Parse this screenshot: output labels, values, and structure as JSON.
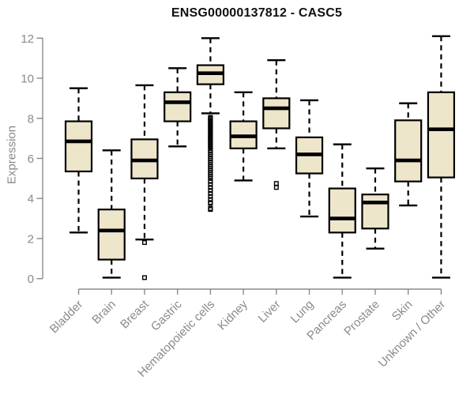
{
  "chart_data": {
    "type": "boxplot",
    "title": "ENSG00000137812 - CASC5",
    "ylabel": "Expression",
    "xlabel": "",
    "ylim": [
      0,
      12
    ],
    "yticks": [
      0,
      2,
      4,
      6,
      8,
      10,
      12
    ],
    "grid": false,
    "legend": "none",
    "colors": {
      "box_fill": "#EDE6CB",
      "box_border": "#000000",
      "median": "#000000",
      "whisker": "#000000",
      "axis": "#8a8a8a",
      "tick_label": "#8a8a8a",
      "title": "#111111"
    },
    "categories": [
      "Bladder",
      "Brain",
      "Breast",
      "Gastric",
      "Hematopoietic cells",
      "Kidney",
      "Liver",
      "Lung",
      "Pancreas",
      "Prostate",
      "Skin",
      "Unknown / Other"
    ],
    "series": [
      {
        "name": "Bladder",
        "low": 2.3,
        "q1": 5.35,
        "median": 6.85,
        "q3": 7.85,
        "high": 9.5,
        "outliers": []
      },
      {
        "name": "Brain",
        "low": 0.05,
        "q1": 0.95,
        "median": 2.4,
        "q3": 3.45,
        "high": 6.4,
        "outliers": []
      },
      {
        "name": "Breast",
        "low": 1.95,
        "q1": 5.0,
        "median": 5.9,
        "q3": 6.95,
        "high": 9.65,
        "outliers": [
          1.8,
          0.05
        ]
      },
      {
        "name": "Gastric",
        "low": 6.6,
        "q1": 7.85,
        "median": 8.8,
        "q3": 9.3,
        "high": 10.5,
        "outliers": []
      },
      {
        "name": "Hematopoietic cells",
        "low": 8.25,
        "q1": 9.7,
        "median": 10.25,
        "q3": 10.65,
        "high": 12.0,
        "outliers": [
          8.05,
          8.0,
          7.94,
          7.88,
          7.82,
          7.76,
          7.7,
          7.64,
          7.58,
          7.52,
          7.46,
          7.4,
          7.34,
          7.28,
          7.22,
          7.16,
          7.1,
          7.04,
          6.98,
          6.92,
          6.86,
          6.8,
          6.74,
          6.68,
          6.62,
          6.56,
          6.5,
          6.4,
          6.3,
          6.2,
          6.1,
          6.0,
          5.9,
          5.8,
          5.7,
          5.6,
          5.5,
          5.4,
          5.3,
          5.2,
          5.1,
          5.0,
          4.85,
          4.7,
          4.55,
          4.4,
          4.25,
          4.1,
          3.95,
          3.8,
          3.75,
          3.5,
          3.45
        ]
      },
      {
        "name": "Kidney",
        "low": 4.9,
        "q1": 6.5,
        "median": 7.1,
        "q3": 7.85,
        "high": 9.3,
        "outliers": []
      },
      {
        "name": "Liver",
        "low": 6.5,
        "q1": 7.5,
        "median": 8.5,
        "q3": 9.0,
        "high": 10.9,
        "outliers": [
          4.75,
          4.55
        ]
      },
      {
        "name": "Lung",
        "low": 3.1,
        "q1": 5.25,
        "median": 6.2,
        "q3": 7.05,
        "high": 8.9,
        "outliers": []
      },
      {
        "name": "Pancreas",
        "low": 0.05,
        "q1": 2.3,
        "median": 3.0,
        "q3": 4.5,
        "high": 6.7,
        "outliers": []
      },
      {
        "name": "Prostate",
        "low": 1.5,
        "q1": 2.5,
        "median": 3.8,
        "q3": 4.2,
        "high": 5.5,
        "outliers": []
      },
      {
        "name": "Skin",
        "low": 3.65,
        "q1": 4.85,
        "median": 5.9,
        "q3": 7.9,
        "high": 8.75,
        "outliers": []
      },
      {
        "name": "Unknown / Other",
        "low": 0.05,
        "q1": 5.05,
        "median": 7.45,
        "q3": 9.3,
        "high": 12.1,
        "outliers": []
      }
    ]
  }
}
